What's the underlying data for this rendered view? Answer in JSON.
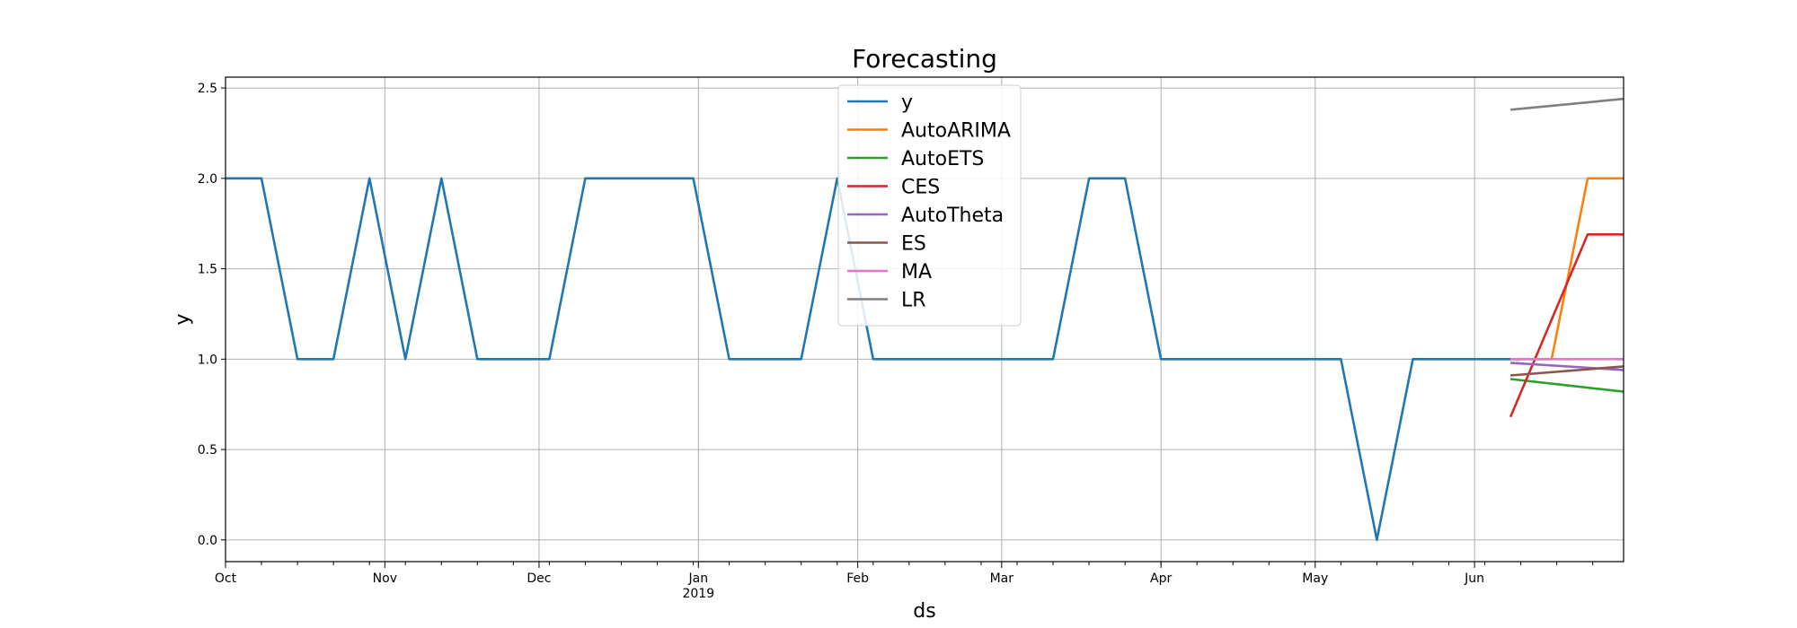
{
  "chart_data": {
    "type": "line",
    "title": "Forecasting",
    "xlabel": "ds",
    "ylabel": "y",
    "xlim": [
      "2018-10-01",
      "2019-06-30"
    ],
    "ylim": [
      -0.12,
      2.56
    ],
    "yticks": [
      0.0,
      0.5,
      1.0,
      1.5,
      2.0,
      2.5
    ],
    "ytick_labels": [
      "0.0",
      "0.5",
      "1.0",
      "1.5",
      "2.0",
      "2.5"
    ],
    "xticks": [
      {
        "date": "2018-10-01",
        "label": "Oct"
      },
      {
        "date": "2018-11-01",
        "label": "Nov"
      },
      {
        "date": "2018-12-01",
        "label": "Dec"
      },
      {
        "date": "2019-01-01",
        "label": "Jan",
        "sublabel": "2019"
      },
      {
        "date": "2019-02-01",
        "label": "Feb"
      },
      {
        "date": "2019-03-01",
        "label": "Mar"
      },
      {
        "date": "2019-04-01",
        "label": "Apr"
      },
      {
        "date": "2019-05-01",
        "label": "May"
      },
      {
        "date": "2019-06-01",
        "label": "Jun"
      }
    ],
    "grid": true,
    "legend_position": "upper center",
    "series": [
      {
        "name": "y",
        "color": "#1f77b4",
        "x": [
          "2018-10-01",
          "2018-10-08",
          "2018-10-15",
          "2018-10-22",
          "2018-10-29",
          "2018-11-05",
          "2018-11-12",
          "2018-11-19",
          "2018-11-26",
          "2018-12-03",
          "2018-12-10",
          "2018-12-17",
          "2018-12-24",
          "2018-12-31",
          "2019-01-07",
          "2019-01-14",
          "2019-01-21",
          "2019-01-28",
          "2019-02-04",
          "2019-02-11",
          "2019-02-18",
          "2019-02-25",
          "2019-03-04",
          "2019-03-11",
          "2019-03-18",
          "2019-03-25",
          "2019-04-01",
          "2019-04-08",
          "2019-04-15",
          "2019-04-22",
          "2019-04-29",
          "2019-05-06",
          "2019-05-13",
          "2019-05-20",
          "2019-05-27",
          "2019-06-03",
          "2019-06-10"
        ],
        "y": [
          2,
          2,
          1,
          1,
          2,
          1,
          2,
          1,
          1,
          1,
          2,
          2,
          2,
          2,
          1,
          1,
          1,
          2,
          1,
          1,
          1,
          1,
          1,
          1,
          2,
          2,
          1,
          1,
          1,
          1,
          1,
          1,
          0,
          1,
          1,
          1,
          1
        ]
      },
      {
        "name": "AutoARIMA",
        "color": "#ff7f0e",
        "x": [
          "2019-06-08",
          "2019-06-16",
          "2019-06-23",
          "2019-06-30"
        ],
        "y": [
          1.0,
          1.0,
          2.0,
          2.0
        ]
      },
      {
        "name": "AutoETS",
        "color": "#2ca02c",
        "x": [
          "2019-06-08",
          "2019-06-30"
        ],
        "y": [
          0.89,
          0.82
        ]
      },
      {
        "name": "CES",
        "color": "#d62728",
        "x": [
          "2019-06-08",
          "2019-06-23",
          "2019-06-30"
        ],
        "y": [
          0.68,
          1.69,
          1.69
        ]
      },
      {
        "name": "AutoTheta",
        "color": "#9467bd",
        "x": [
          "2019-06-08",
          "2019-06-30"
        ],
        "y": [
          0.98,
          0.94
        ]
      },
      {
        "name": "ES",
        "color": "#8c564b",
        "x": [
          "2019-06-08",
          "2019-06-30"
        ],
        "y": [
          0.91,
          0.96
        ]
      },
      {
        "name": "MA",
        "color": "#e377c2",
        "x": [
          "2019-06-08",
          "2019-06-30"
        ],
        "y": [
          1.0,
          1.0
        ]
      },
      {
        "name": "LR",
        "color": "#7f7f7f",
        "x": [
          "2019-06-08",
          "2019-06-30"
        ],
        "y": [
          2.38,
          2.44
        ]
      }
    ]
  }
}
